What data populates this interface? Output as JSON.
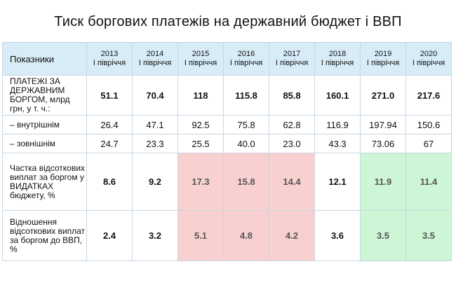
{
  "title": "Тиск боргових платежів на державний бюджет і ВВП",
  "header": {
    "label": "Показники",
    "columns": [
      {
        "year": "2013",
        "period": "I півріччя"
      },
      {
        "year": "2014",
        "period": "I півріччя"
      },
      {
        "year": "2015",
        "period": "I півріччя"
      },
      {
        "year": "2016",
        "period": "I півріччя"
      },
      {
        "year": "2017",
        "period": "I півріччя"
      },
      {
        "year": "2018",
        "period": "I півріччя"
      },
      {
        "year": "2019",
        "period": "I півріччя"
      },
      {
        "year": "2020",
        "period": "I півріччя"
      }
    ]
  },
  "rows": [
    {
      "label": "ПЛАТЕЖІ ЗА ДЕРЖАВНИМ БОРГОМ, млрд грн, у т. ч.:",
      "values": [
        "51.1",
        "70.4",
        "118",
        "115.8",
        "85.8",
        "160.1",
        "271.0",
        "217.6"
      ]
    },
    {
      "label": "– внутрішнім",
      "values": [
        "26.4",
        "47.1",
        "92.5",
        "75.8",
        "62.8",
        "116.9",
        "197.94",
        "150.6"
      ]
    },
    {
      "label": "– зовнішнім",
      "values": [
        "24.7",
        "23.3",
        "25.5",
        "40.0",
        "23.0",
        "43.3",
        "73.06",
        "67"
      ]
    },
    {
      "label": "Частка відсоткових виплат за боргом у ВИДАТКАХ бюджету, %",
      "values": [
        "8.6",
        "9.2",
        "17.3",
        "15.8",
        "14.4",
        "12.1",
        "11.9",
        "11.4"
      ]
    },
    {
      "label": "Відношення відсоткових виплат за боргом до ВВП, %",
      "values": [
        "2.4",
        "3.2",
        "5.1",
        "4.8",
        "4.2",
        "3.6",
        "3.5",
        "3.5"
      ]
    }
  ],
  "colors": {
    "header_bg": "#d7ecf7",
    "high_bg": "#f9d0d0",
    "low_bg": "#cdf6d6"
  }
}
